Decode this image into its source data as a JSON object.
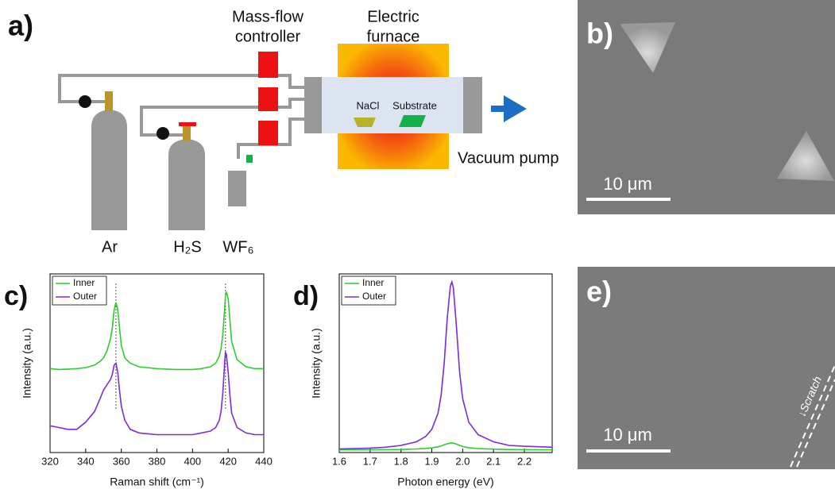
{
  "panel_a": {
    "label": "a)",
    "mfc": [
      "Mass-flow",
      "controller"
    ],
    "furnace": [
      "Electric",
      "furnace"
    ],
    "nacl": "NaCl",
    "substrate": "Substrate",
    "pump": "Vacuum pump",
    "gases": [
      "Ar",
      "H₂S",
      "WF₆"
    ]
  },
  "panel_b": {
    "label": "b)",
    "scale": "10 μm"
  },
  "panel_e": {
    "label": "e)",
    "scale": "10 μm",
    "scratch": "↓Scratch"
  },
  "chart_data": [
    {
      "type": "line",
      "label": "c)",
      "xlabel": "Raman shift (cm⁻¹)",
      "ylabel": "Intensity (a.u.)",
      "x": [
        320,
        325,
        330,
        335,
        340,
        345,
        348,
        350,
        352,
        354,
        355,
        356,
        357,
        358,
        359,
        360,
        362,
        365,
        370,
        380,
        390,
        400,
        405,
        410,
        413,
        415,
        416,
        417,
        418,
        418.5,
        419,
        420,
        421,
        422,
        425,
        430,
        435,
        440
      ],
      "series": [
        {
          "name": "Inner",
          "color": "#2ecc2e",
          "values": [
            0.47,
            0.465,
            0.467,
            0.47,
            0.475,
            0.49,
            0.51,
            0.53,
            0.57,
            0.64,
            0.7,
            0.8,
            0.84,
            0.8,
            0.7,
            0.6,
            0.53,
            0.5,
            0.48,
            0.47,
            0.465,
            0.465,
            0.47,
            0.48,
            0.5,
            0.54,
            0.58,
            0.66,
            0.8,
            0.88,
            0.9,
            0.86,
            0.74,
            0.62,
            0.52,
            0.48,
            0.47,
            0.47
          ]
        },
        {
          "name": "Outer",
          "color": "#7b2be0",
          "values": [
            0.15,
            0.14,
            0.13,
            0.13,
            0.17,
            0.23,
            0.3,
            0.35,
            0.38,
            0.41,
            0.44,
            0.49,
            0.5,
            0.45,
            0.35,
            0.26,
            0.18,
            0.13,
            0.11,
            0.1,
            0.1,
            0.1,
            0.11,
            0.12,
            0.14,
            0.18,
            0.23,
            0.33,
            0.5,
            0.56,
            0.55,
            0.45,
            0.32,
            0.22,
            0.14,
            0.11,
            0.1,
            0.1
          ]
        }
      ],
      "reference_lines": [
        357,
        418.5
      ],
      "xlim": [
        320,
        440
      ],
      "xticks": [
        320,
        340,
        360,
        380,
        400,
        420,
        440
      ],
      "ylim": [
        0,
        1
      ]
    },
    {
      "type": "line",
      "label": "d)",
      "xlabel": "Photon energy (eV)",
      "ylabel": "Intensity (a.u.)",
      "x": [
        1.6,
        1.7,
        1.75,
        1.8,
        1.85,
        1.88,
        1.9,
        1.92,
        1.93,
        1.94,
        1.95,
        1.96,
        1.965,
        1.97,
        1.98,
        1.99,
        2.0,
        2.02,
        2.05,
        2.1,
        2.15,
        2.2,
        2.29
      ],
      "series": [
        {
          "name": "Inner",
          "color": "#2ecc2e",
          "values": [
            0.015,
            0.015,
            0.016,
            0.017,
            0.02,
            0.023,
            0.026,
            0.032,
            0.037,
            0.043,
            0.049,
            0.053,
            0.054,
            0.053,
            0.047,
            0.04,
            0.034,
            0.027,
            0.022,
            0.019,
            0.017,
            0.016,
            0.015
          ]
        },
        {
          "name": "Outer",
          "color": "#7b2be0",
          "values": [
            0.02,
            0.025,
            0.03,
            0.04,
            0.06,
            0.09,
            0.13,
            0.22,
            0.32,
            0.5,
            0.75,
            0.93,
            0.955,
            0.92,
            0.7,
            0.45,
            0.3,
            0.17,
            0.1,
            0.06,
            0.04,
            0.035,
            0.03
          ]
        }
      ],
      "xlim": [
        1.6,
        2.29
      ],
      "xticks": [
        1.6,
        1.7,
        1.8,
        1.9,
        {
          "value": 2,
          "label": "2.0"
        },
        2.1,
        2.2
      ],
      "ylim": [
        0,
        1
      ]
    }
  ]
}
